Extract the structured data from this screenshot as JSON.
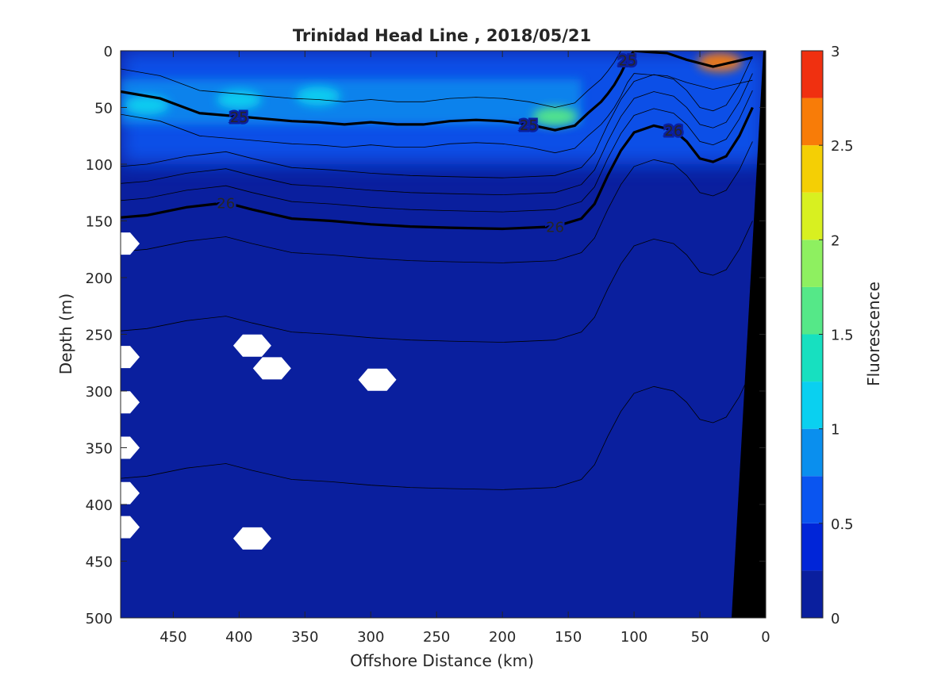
{
  "chart_data": {
    "type": "heatmap",
    "title": "Trinidad Head Line , 2018/05/21",
    "xlabel": "Offshore Distance (km)",
    "ylabel": "Depth (m)",
    "xlim": [
      490,
      0
    ],
    "ylim": [
      500,
      0
    ],
    "x_reversed": true,
    "y_reversed": true,
    "xticks": [
      "450",
      "400",
      "350",
      "300",
      "250",
      "200",
      "150",
      "100",
      "50",
      "0"
    ],
    "yticks": [
      "0",
      "50",
      "100",
      "150",
      "200",
      "250",
      "300",
      "350",
      "400",
      "450",
      "500"
    ],
    "colorbar": {
      "label": "Fluorescence",
      "range": [
        0,
        3
      ],
      "ticks": [
        "0",
        "0.5",
        "1",
        "1.5",
        "2",
        "2.5",
        "3"
      ],
      "levels": [
        0,
        0.25,
        0.5,
        0.75,
        1,
        1.25,
        1.5,
        1.75,
        2,
        2.25,
        2.5,
        2.75,
        3
      ],
      "colors": [
        "#0a1f9e",
        "#0025d8",
        "#0a55f0",
        "#0a8fee",
        "#0ad0f0",
        "#17e0c0",
        "#55e888",
        "#8ef060",
        "#d8f020",
        "#f4cf05",
        "#f87c08",
        "#f03010"
      ]
    },
    "fluorescence_features": [
      {
        "desc": "surface layer",
        "x_range": [
          490,
          0
        ],
        "depth_range": [
          0,
          100
        ],
        "value": 0.5
      },
      {
        "desc": "subsurface maximum band",
        "x_range": [
          490,
          140
        ],
        "depth_range": [
          25,
          65
        ],
        "value": 0.9
      },
      {
        "desc": "patch",
        "x": 470,
        "depth": 48,
        "value": 1.2
      },
      {
        "desc": "patch",
        "x": 400,
        "depth": 43,
        "value": 1.2
      },
      {
        "desc": "patch",
        "x": 340,
        "depth": 40,
        "value": 1.2
      },
      {
        "desc": "patch",
        "x": 160,
        "depth": 58,
        "value": 1.6
      },
      {
        "desc": "nearshore surface bloom",
        "x": 35,
        "depth": 10,
        "value": 2.7
      }
    ],
    "density_contours": [
      {
        "label": "25",
        "x": [
          490,
          460,
          430,
          400,
          380,
          360,
          340,
          320,
          300,
          280,
          260,
          240,
          220,
          200,
          180,
          160,
          145,
          135,
          125,
          120,
          115,
          110,
          105,
          100,
          90,
          75,
          60,
          40,
          25,
          10
        ],
        "depth": [
          36,
          42,
          55,
          58,
          60,
          62,
          63,
          65,
          63,
          65,
          65,
          62,
          61,
          62,
          65,
          70,
          66,
          55,
          45,
          38,
          30,
          20,
          8,
          0,
          1,
          2,
          8,
          14,
          10,
          6
        ]
      },
      {
        "label": "26",
        "x": [
          490,
          470,
          440,
          410,
          390,
          360,
          330,
          300,
          270,
          240,
          200,
          160,
          140,
          130,
          120,
          110,
          100,
          85,
          70,
          60,
          50,
          40,
          30,
          20,
          10
        ],
        "depth": [
          147,
          145,
          138,
          134,
          140,
          148,
          150,
          153,
          155,
          156,
          157,
          155,
          148,
          135,
          110,
          88,
          72,
          66,
          70,
          80,
          95,
          98,
          93,
          75,
          50
        ]
      }
    ],
    "missing_data_markers": [
      {
        "x": 390,
        "depth": 260
      },
      {
        "x": 375,
        "depth": 280
      },
      {
        "x": 295,
        "depth": 290
      },
      {
        "x": 390,
        "depth": 430
      },
      {
        "x": 490,
        "depth": 170
      },
      {
        "x": 490,
        "depth": 270
      },
      {
        "x": 490,
        "depth": 310
      },
      {
        "x": 490,
        "depth": 350
      },
      {
        "x": 490,
        "depth": 390
      },
      {
        "x": 490,
        "depth": 420
      }
    ]
  }
}
